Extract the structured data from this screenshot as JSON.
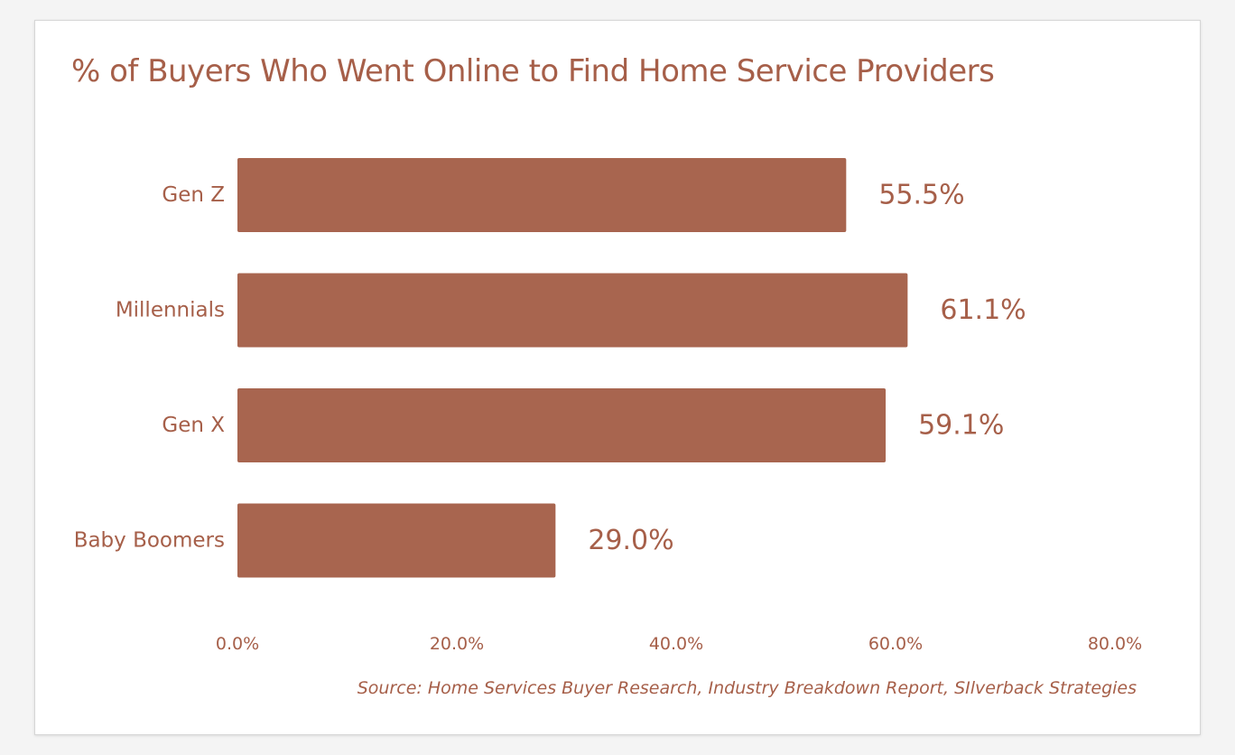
{
  "chart_data": {
    "type": "bar",
    "orientation": "horizontal",
    "title": "% of Buyers Who Went Online to Find Home Service Providers",
    "categories": [
      "Gen Z",
      "Millennials",
      "Gen X",
      "Baby Boomers"
    ],
    "values": [
      55.5,
      61.1,
      59.1,
      29.0
    ],
    "value_labels": [
      "55.5%",
      "61.1%",
      "59.1%",
      "29.0%"
    ],
    "xlim": [
      0,
      80
    ],
    "x_ticks": [
      0,
      20,
      40,
      60,
      80
    ],
    "x_tick_labels": [
      "0.0%",
      "20.0%",
      "40.0%",
      "60.0%",
      "80.0%"
    ],
    "xlabel": "",
    "ylabel": "",
    "grid": false,
    "legend": "none",
    "bar_color": "#a8654f",
    "text_color": "#a65f49"
  },
  "source_note": "Source: Home Services Buyer Research, Industry Breakdown Report, SIlverback Strategies"
}
